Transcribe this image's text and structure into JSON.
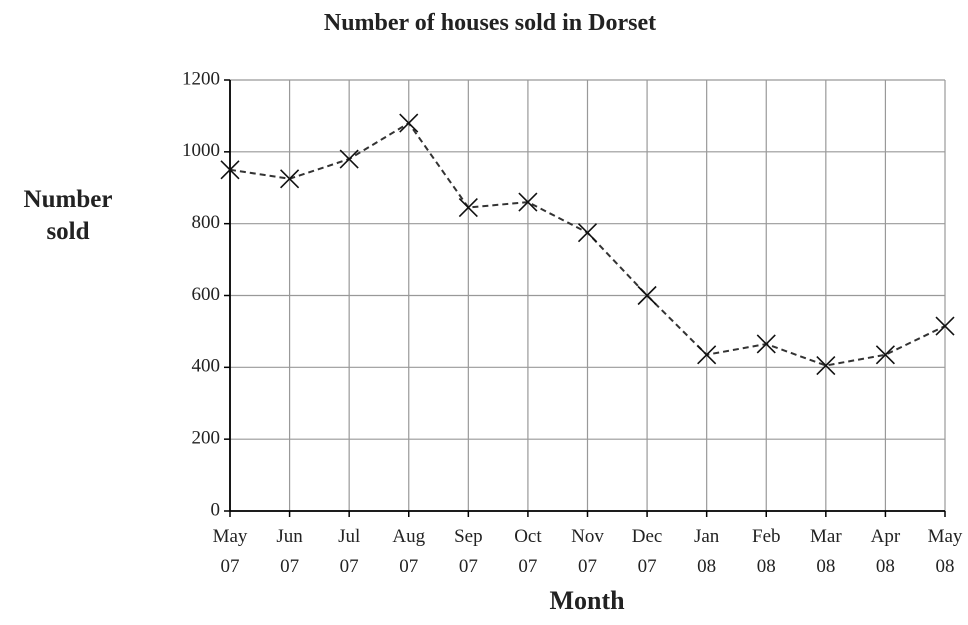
{
  "chart_data": {
    "type": "line",
    "title": "Number of houses sold in Dorset",
    "x_label": "Month",
    "y_label": "Number sold",
    "categories": [
      "May 07",
      "Jun 07",
      "Jul 07",
      "Aug 07",
      "Sep 07",
      "Oct 07",
      "Nov 07",
      "Dec 07",
      "Jan 08",
      "Feb 08",
      "Mar 08",
      "Apr 08",
      "May 08"
    ],
    "values": [
      950,
      925,
      980,
      1080,
      845,
      860,
      775,
      600,
      435,
      465,
      405,
      435,
      515
    ],
    "color": "#333333",
    "marker": "x",
    "line_style": "dashed",
    "ylim": [
      0,
      1200
    ],
    "yticks": [
      0,
      200,
      400,
      600,
      800,
      1000,
      1200
    ],
    "grid": true
  }
}
